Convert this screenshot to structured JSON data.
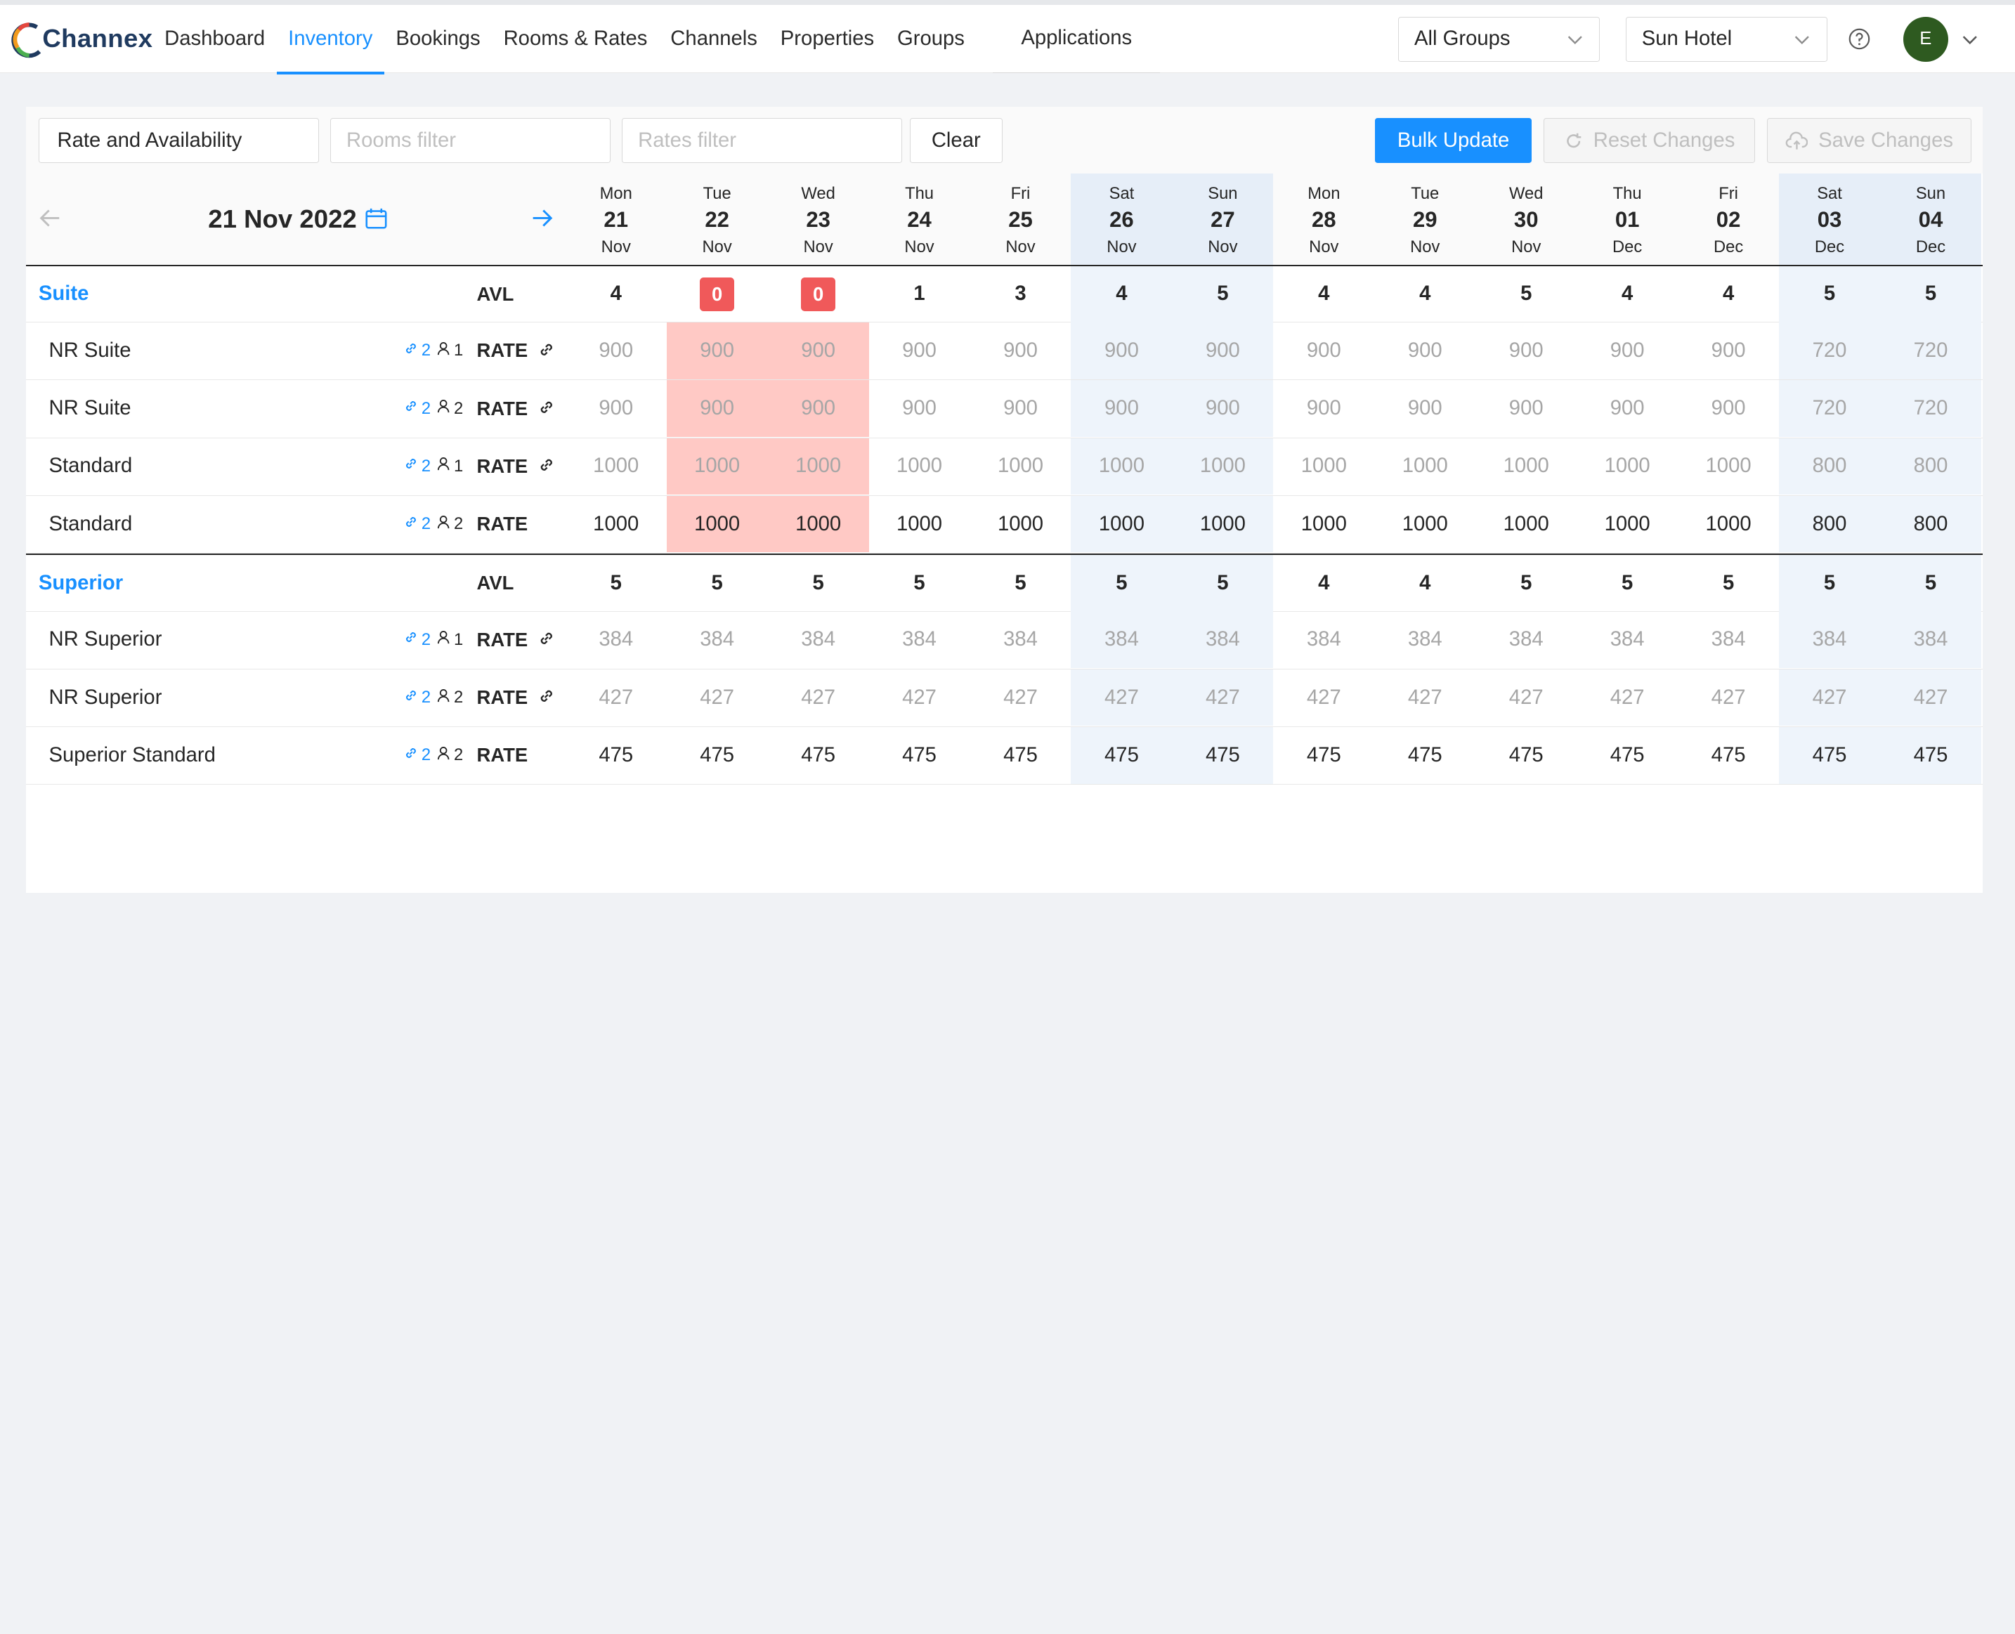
{
  "brand": {
    "name": "Channex"
  },
  "nav": {
    "items": [
      "Dashboard",
      "Inventory",
      "Bookings",
      "Rooms & Rates",
      "Channels",
      "Properties",
      "Groups"
    ],
    "active_index": 1,
    "applications": "Applications"
  },
  "header_right": {
    "group_select": "All Groups",
    "property_select": "Sun Hotel",
    "avatar_initial": "E"
  },
  "toolbar": {
    "mode_select": "Rate and Availability",
    "rooms_filter_placeholder": "Rooms filter",
    "rates_filter_placeholder": "Rates filter",
    "clear_label": "Clear",
    "bulk_update_label": "Bulk Update",
    "reset_label": "Reset Changes",
    "save_label": "Save Changes"
  },
  "calendar": {
    "current_date": "21 Nov 2022",
    "days": [
      {
        "dow": "Mon",
        "day": "21",
        "mon": "Nov",
        "weekend": false
      },
      {
        "dow": "Tue",
        "day": "22",
        "mon": "Nov",
        "weekend": false
      },
      {
        "dow": "Wed",
        "day": "23",
        "mon": "Nov",
        "weekend": false
      },
      {
        "dow": "Thu",
        "day": "24",
        "mon": "Nov",
        "weekend": false
      },
      {
        "dow": "Fri",
        "day": "25",
        "mon": "Nov",
        "weekend": false
      },
      {
        "dow": "Sat",
        "day": "26",
        "mon": "Nov",
        "weekend": true
      },
      {
        "dow": "Sun",
        "day": "27",
        "mon": "Nov",
        "weekend": true
      },
      {
        "dow": "Mon",
        "day": "28",
        "mon": "Nov",
        "weekend": false
      },
      {
        "dow": "Tue",
        "day": "29",
        "mon": "Nov",
        "weekend": false
      },
      {
        "dow": "Wed",
        "day": "30",
        "mon": "Nov",
        "weekend": false
      },
      {
        "dow": "Thu",
        "day": "01",
        "mon": "Dec",
        "weekend": false
      },
      {
        "dow": "Fri",
        "day": "02",
        "mon": "Dec",
        "weekend": false
      },
      {
        "dow": "Sat",
        "day": "03",
        "mon": "Dec",
        "weekend": true
      },
      {
        "dow": "Sun",
        "day": "04",
        "mon": "Dec",
        "weekend": true
      }
    ]
  },
  "avl_label": "AVL",
  "rate_label": "RATE",
  "rooms": [
    {
      "name": "Suite",
      "availability": [
        "4",
        "0",
        "0",
        "1",
        "3",
        "4",
        "5",
        "4",
        "4",
        "5",
        "4",
        "4",
        "5",
        "5"
      ],
      "zero_highlight": [
        false,
        true,
        true,
        false,
        false,
        false,
        false,
        false,
        false,
        false,
        false,
        false,
        false,
        false
      ],
      "rates": [
        {
          "name": "NR Suite",
          "links": "2",
          "occupancy": "1",
          "derived": true,
          "muted": true,
          "values": [
            "900",
            "900",
            "900",
            "900",
            "900",
            "900",
            "900",
            "900",
            "900",
            "900",
            "900",
            "900",
            "720",
            "720"
          ]
        },
        {
          "name": "NR Suite",
          "links": "2",
          "occupancy": "2",
          "derived": true,
          "muted": true,
          "values": [
            "900",
            "900",
            "900",
            "900",
            "900",
            "900",
            "900",
            "900",
            "900",
            "900",
            "900",
            "900",
            "720",
            "720"
          ]
        },
        {
          "name": "Standard",
          "links": "2",
          "occupancy": "1",
          "derived": true,
          "muted": true,
          "values": [
            "1000",
            "1000",
            "1000",
            "1000",
            "1000",
            "1000",
            "1000",
            "1000",
            "1000",
            "1000",
            "1000",
            "1000",
            "800",
            "800"
          ]
        },
        {
          "name": "Standard",
          "links": "2",
          "occupancy": "2",
          "derived": false,
          "muted": false,
          "values": [
            "1000",
            "1000",
            "1000",
            "1000",
            "1000",
            "1000",
            "1000",
            "1000",
            "1000",
            "1000",
            "1000",
            "1000",
            "800",
            "800"
          ]
        }
      ]
    },
    {
      "name": "Superior",
      "availability": [
        "5",
        "5",
        "5",
        "5",
        "5",
        "5",
        "5",
        "4",
        "4",
        "5",
        "5",
        "5",
        "5",
        "5"
      ],
      "zero_highlight": [
        false,
        false,
        false,
        false,
        false,
        false,
        false,
        false,
        false,
        false,
        false,
        false,
        false,
        false
      ],
      "rates": [
        {
          "name": "NR Superior",
          "links": "2",
          "occupancy": "1",
          "derived": true,
          "muted": true,
          "values": [
            "384",
            "384",
            "384",
            "384",
            "384",
            "384",
            "384",
            "384",
            "384",
            "384",
            "384",
            "384",
            "384",
            "384"
          ]
        },
        {
          "name": "NR Superior",
          "links": "2",
          "occupancy": "2",
          "derived": true,
          "muted": true,
          "values": [
            "427",
            "427",
            "427",
            "427",
            "427",
            "427",
            "427",
            "427",
            "427",
            "427",
            "427",
            "427",
            "427",
            "427"
          ]
        },
        {
          "name": "Superior Standard",
          "links": "2",
          "occupancy": "2",
          "derived": false,
          "muted": false,
          "values": [
            "475",
            "475",
            "475",
            "475",
            "475",
            "475",
            "475",
            "475",
            "475",
            "475",
            "475",
            "475",
            "475",
            "475"
          ]
        }
      ]
    }
  ],
  "colors": {
    "accent": "#1890ff",
    "weekend_bg": "#eef4fb",
    "closed_bg": "#ffc9c5",
    "closed_badge": "#f0595a"
  }
}
